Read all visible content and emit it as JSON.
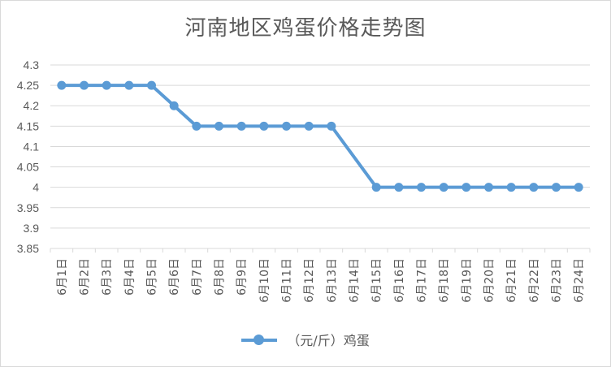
{
  "chart_data": {
    "type": "line",
    "title": "河南地区鸡蛋价格走势图",
    "categories": [
      "6月1日",
      "6月2日",
      "6月3日",
      "6月4日",
      "6月5日",
      "6月6日",
      "6月7日",
      "6月8日",
      "6月9日",
      "6月10日",
      "6月11日",
      "6月12日",
      "6月13日",
      "6月14日",
      "6月15日",
      "6月16日",
      "6月17日",
      "6月18日",
      "6月19日",
      "6月20日",
      "6月21日",
      "6月22日",
      "6月23日",
      "6月24日"
    ],
    "series": [
      {
        "name": "（元/斤）鸡蛋",
        "values": [
          4.25,
          4.25,
          4.25,
          4.25,
          4.25,
          4.2,
          4.15,
          4.15,
          4.15,
          4.15,
          4.15,
          4.15,
          4.15,
          null,
          4.0,
          4.0,
          4.0,
          4.0,
          4.0,
          4.0,
          4.0,
          4.0,
          4.0,
          4.0
        ]
      }
    ],
    "y_ticks": [
      "3.85",
      "3.9",
      "3.95",
      "4",
      "4.05",
      "4.1",
      "4.15",
      "4.2",
      "4.25",
      "4.3"
    ],
    "ylim": [
      3.85,
      4.3
    ],
    "grid": true,
    "legend_position": "bottom",
    "color": "#5b9bd5"
  }
}
